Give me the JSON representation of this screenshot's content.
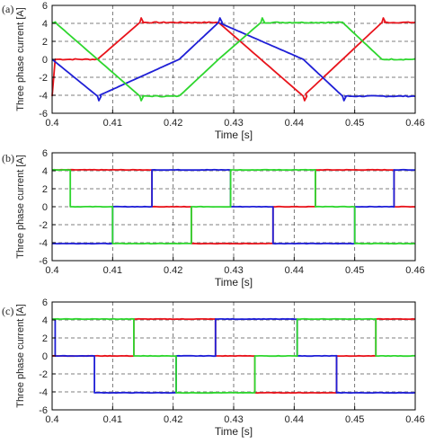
{
  "colors": {
    "phase_a": "#e8141c",
    "phase_b": "#1f1fd6",
    "phase_c": "#2ed62e",
    "grid": "#555555",
    "axis": "#000000"
  },
  "chart_data": [
    {
      "type": "line",
      "panel_label": "(a)",
      "xlabel": "Time [s]",
      "ylabel": "Three phase current [A]",
      "xlim": [
        0.4,
        0.46
      ],
      "ylim": [
        -6,
        6
      ],
      "xticks": [
        "0.4",
        "0.41",
        "0.42",
        "0.43",
        "0.44",
        "0.45",
        "0.46"
      ],
      "yticks": [
        "-6",
        "-4",
        "-2",
        "0",
        "2",
        "4",
        "6"
      ],
      "grid": true,
      "amplitude": 4.1,
      "noise": "high",
      "series": [
        {
          "color": "#e8141c",
          "segments": [
            {
              "x": 0.4,
              "y": -4.1
            },
            {
              "x": 0.4005,
              "y": 0
            },
            {
              "x": 0.4075,
              "y": 0
            },
            {
              "x": 0.4145,
              "y": 4.1
            },
            {
              "x": 0.4275,
              "y": 4.1
            },
            {
              "x": 0.4345,
              "y": 0
            },
            {
              "x": 0.4415,
              "y": -4.1
            },
            {
              "x": 0.4545,
              "y": 4.1
            },
            {
              "x": 0.46,
              "y": 4.1
            }
          ]
        },
        {
          "color": "#1f1fd6",
          "segments": [
            {
              "x": 0.4,
              "y": 0
            },
            {
              "x": 0.4075,
              "y": -4.1
            },
            {
              "x": 0.421,
              "y": 0
            },
            {
              "x": 0.4275,
              "y": 4.1
            },
            {
              "x": 0.4415,
              "y": 0
            },
            {
              "x": 0.448,
              "y": -4.1
            },
            {
              "x": 0.46,
              "y": -4.1
            }
          ]
        },
        {
          "color": "#2ed62e",
          "segments": [
            {
              "x": 0.4,
              "y": 4.1
            },
            {
              "x": 0.4005,
              "y": 4.1
            },
            {
              "x": 0.4075,
              "y": 0
            },
            {
              "x": 0.4145,
              "y": -4.1
            },
            {
              "x": 0.421,
              "y": -4.1
            },
            {
              "x": 0.4275,
              "y": 0
            },
            {
              "x": 0.4345,
              "y": 4.1
            },
            {
              "x": 0.448,
              "y": 4.1
            },
            {
              "x": 0.4545,
              "y": 0
            },
            {
              "x": 0.46,
              "y": 0
            }
          ]
        }
      ]
    },
    {
      "type": "line",
      "panel_label": "(b)",
      "xlabel": "Time [s]",
      "ylabel": "Three phase current [A]",
      "xlim": [
        0.4,
        0.46
      ],
      "ylim": [
        -6,
        6
      ],
      "xticks": [
        "0.4",
        "0.41",
        "0.42",
        "0.43",
        "0.44",
        "0.45",
        "0.46"
      ],
      "yticks": [
        "-6",
        "-4",
        "-2",
        "0",
        "2",
        "4",
        "6"
      ],
      "grid": true,
      "amplitude": 4.1,
      "noise": "low",
      "series": [
        {
          "color": "#e8141c",
          "segments": [
            {
              "x": 0.4,
              "y": 4.1
            },
            {
              "x": 0.403,
              "y": 4.1
            },
            {
              "x": 0.403,
              "y": 4.1
            },
            {
              "x": 0.4165,
              "y": 4.1
            },
            {
              "x": 0.4165,
              "y": 0
            },
            {
              "x": 0.423,
              "y": 0
            },
            {
              "x": 0.423,
              "y": -4.1
            },
            {
              "x": 0.4365,
              "y": -4.1
            },
            {
              "x": 0.4365,
              "y": 0
            },
            {
              "x": 0.4435,
              "y": 0
            },
            {
              "x": 0.4435,
              "y": 4.1
            },
            {
              "x": 0.4565,
              "y": 4.1
            },
            {
              "x": 0.4565,
              "y": 0
            },
            {
              "x": 0.46,
              "y": 0
            }
          ]
        },
        {
          "color": "#1f1fd6",
          "segments": [
            {
              "x": 0.4,
              "y": -4.1
            },
            {
              "x": 0.41,
              "y": -4.1
            },
            {
              "x": 0.41,
              "y": 0
            },
            {
              "x": 0.4165,
              "y": 0
            },
            {
              "x": 0.4165,
              "y": 4.1
            },
            {
              "x": 0.4295,
              "y": 4.1
            },
            {
              "x": 0.4295,
              "y": 0
            },
            {
              "x": 0.4365,
              "y": 0
            },
            {
              "x": 0.4365,
              "y": -4.1
            },
            {
              "x": 0.45,
              "y": -4.1
            },
            {
              "x": 0.45,
              "y": 0
            },
            {
              "x": 0.4565,
              "y": 0
            },
            {
              "x": 0.4565,
              "y": 4.1
            },
            {
              "x": 0.46,
              "y": 4.1
            }
          ]
        },
        {
          "color": "#2ed62e",
          "segments": [
            {
              "x": 0.4,
              "y": 4.1
            },
            {
              "x": 0.403,
              "y": 4.1
            },
            {
              "x": 0.403,
              "y": 0
            },
            {
              "x": 0.41,
              "y": 0
            },
            {
              "x": 0.41,
              "y": -4.1
            },
            {
              "x": 0.423,
              "y": -4.1
            },
            {
              "x": 0.423,
              "y": 0
            },
            {
              "x": 0.4295,
              "y": 0
            },
            {
              "x": 0.4295,
              "y": 4.1
            },
            {
              "x": 0.4435,
              "y": 4.1
            },
            {
              "x": 0.4435,
              "y": 0
            },
            {
              "x": 0.45,
              "y": 0
            },
            {
              "x": 0.45,
              "y": -4.1
            },
            {
              "x": 0.46,
              "y": -4.1
            }
          ]
        }
      ]
    },
    {
      "type": "line",
      "panel_label": "(c)",
      "xlabel": "Time [s]",
      "ylabel": "Three phase current [A]",
      "xlim": [
        0.4,
        0.46
      ],
      "ylim": [
        -6,
        6
      ],
      "xticks": [
        "0.4",
        "0.41",
        "0.42",
        "0.43",
        "0.44",
        "0.45",
        "0.46"
      ],
      "yticks": [
        "-6",
        "-4",
        "-2",
        "0",
        "2",
        "4",
        "6"
      ],
      "grid": true,
      "amplitude": 4.1,
      "noise": "low",
      "series": [
        {
          "color": "#e8141c",
          "segments": [
            {
              "x": 0.4,
              "y": 0
            },
            {
              "x": 0.4135,
              "y": 0
            },
            {
              "x": 0.4135,
              "y": 4.1
            },
            {
              "x": 0.427,
              "y": 4.1
            },
            {
              "x": 0.427,
              "y": 0
            },
            {
              "x": 0.4335,
              "y": 0
            },
            {
              "x": 0.4335,
              "y": -4.1
            },
            {
              "x": 0.447,
              "y": -4.1
            },
            {
              "x": 0.447,
              "y": 0
            },
            {
              "x": 0.4535,
              "y": 0
            },
            {
              "x": 0.4535,
              "y": 4.1
            },
            {
              "x": 0.46,
              "y": 4.1
            }
          ]
        },
        {
          "color": "#1f1fd6",
          "segments": [
            {
              "x": 0.4,
              "y": 4.1
            },
            {
              "x": 0.4005,
              "y": 4.1
            },
            {
              "x": 0.4005,
              "y": 0
            },
            {
              "x": 0.407,
              "y": 0
            },
            {
              "x": 0.407,
              "y": -4.1
            },
            {
              "x": 0.4205,
              "y": -4.1
            },
            {
              "x": 0.4205,
              "y": 0
            },
            {
              "x": 0.427,
              "y": 0
            },
            {
              "x": 0.427,
              "y": 4.1
            },
            {
              "x": 0.4405,
              "y": 4.1
            },
            {
              "x": 0.4405,
              "y": 0
            },
            {
              "x": 0.447,
              "y": 0
            },
            {
              "x": 0.447,
              "y": -4.1
            },
            {
              "x": 0.46,
              "y": -4.1
            }
          ]
        },
        {
          "color": "#2ed62e",
          "segments": [
            {
              "x": 0.4,
              "y": 4.1
            },
            {
              "x": 0.4005,
              "y": 4.1
            },
            {
              "x": 0.4005,
              "y": 4.1
            },
            {
              "x": 0.4135,
              "y": 4.1
            },
            {
              "x": 0.4135,
              "y": 0
            },
            {
              "x": 0.4205,
              "y": 0
            },
            {
              "x": 0.4205,
              "y": -4.1
            },
            {
              "x": 0.4335,
              "y": -4.1
            },
            {
              "x": 0.4335,
              "y": 0
            },
            {
              "x": 0.4405,
              "y": 0
            },
            {
              "x": 0.4405,
              "y": 4.1
            },
            {
              "x": 0.4535,
              "y": 4.1
            },
            {
              "x": 0.4535,
              "y": 0
            },
            {
              "x": 0.46,
              "y": 0
            }
          ]
        }
      ]
    }
  ]
}
